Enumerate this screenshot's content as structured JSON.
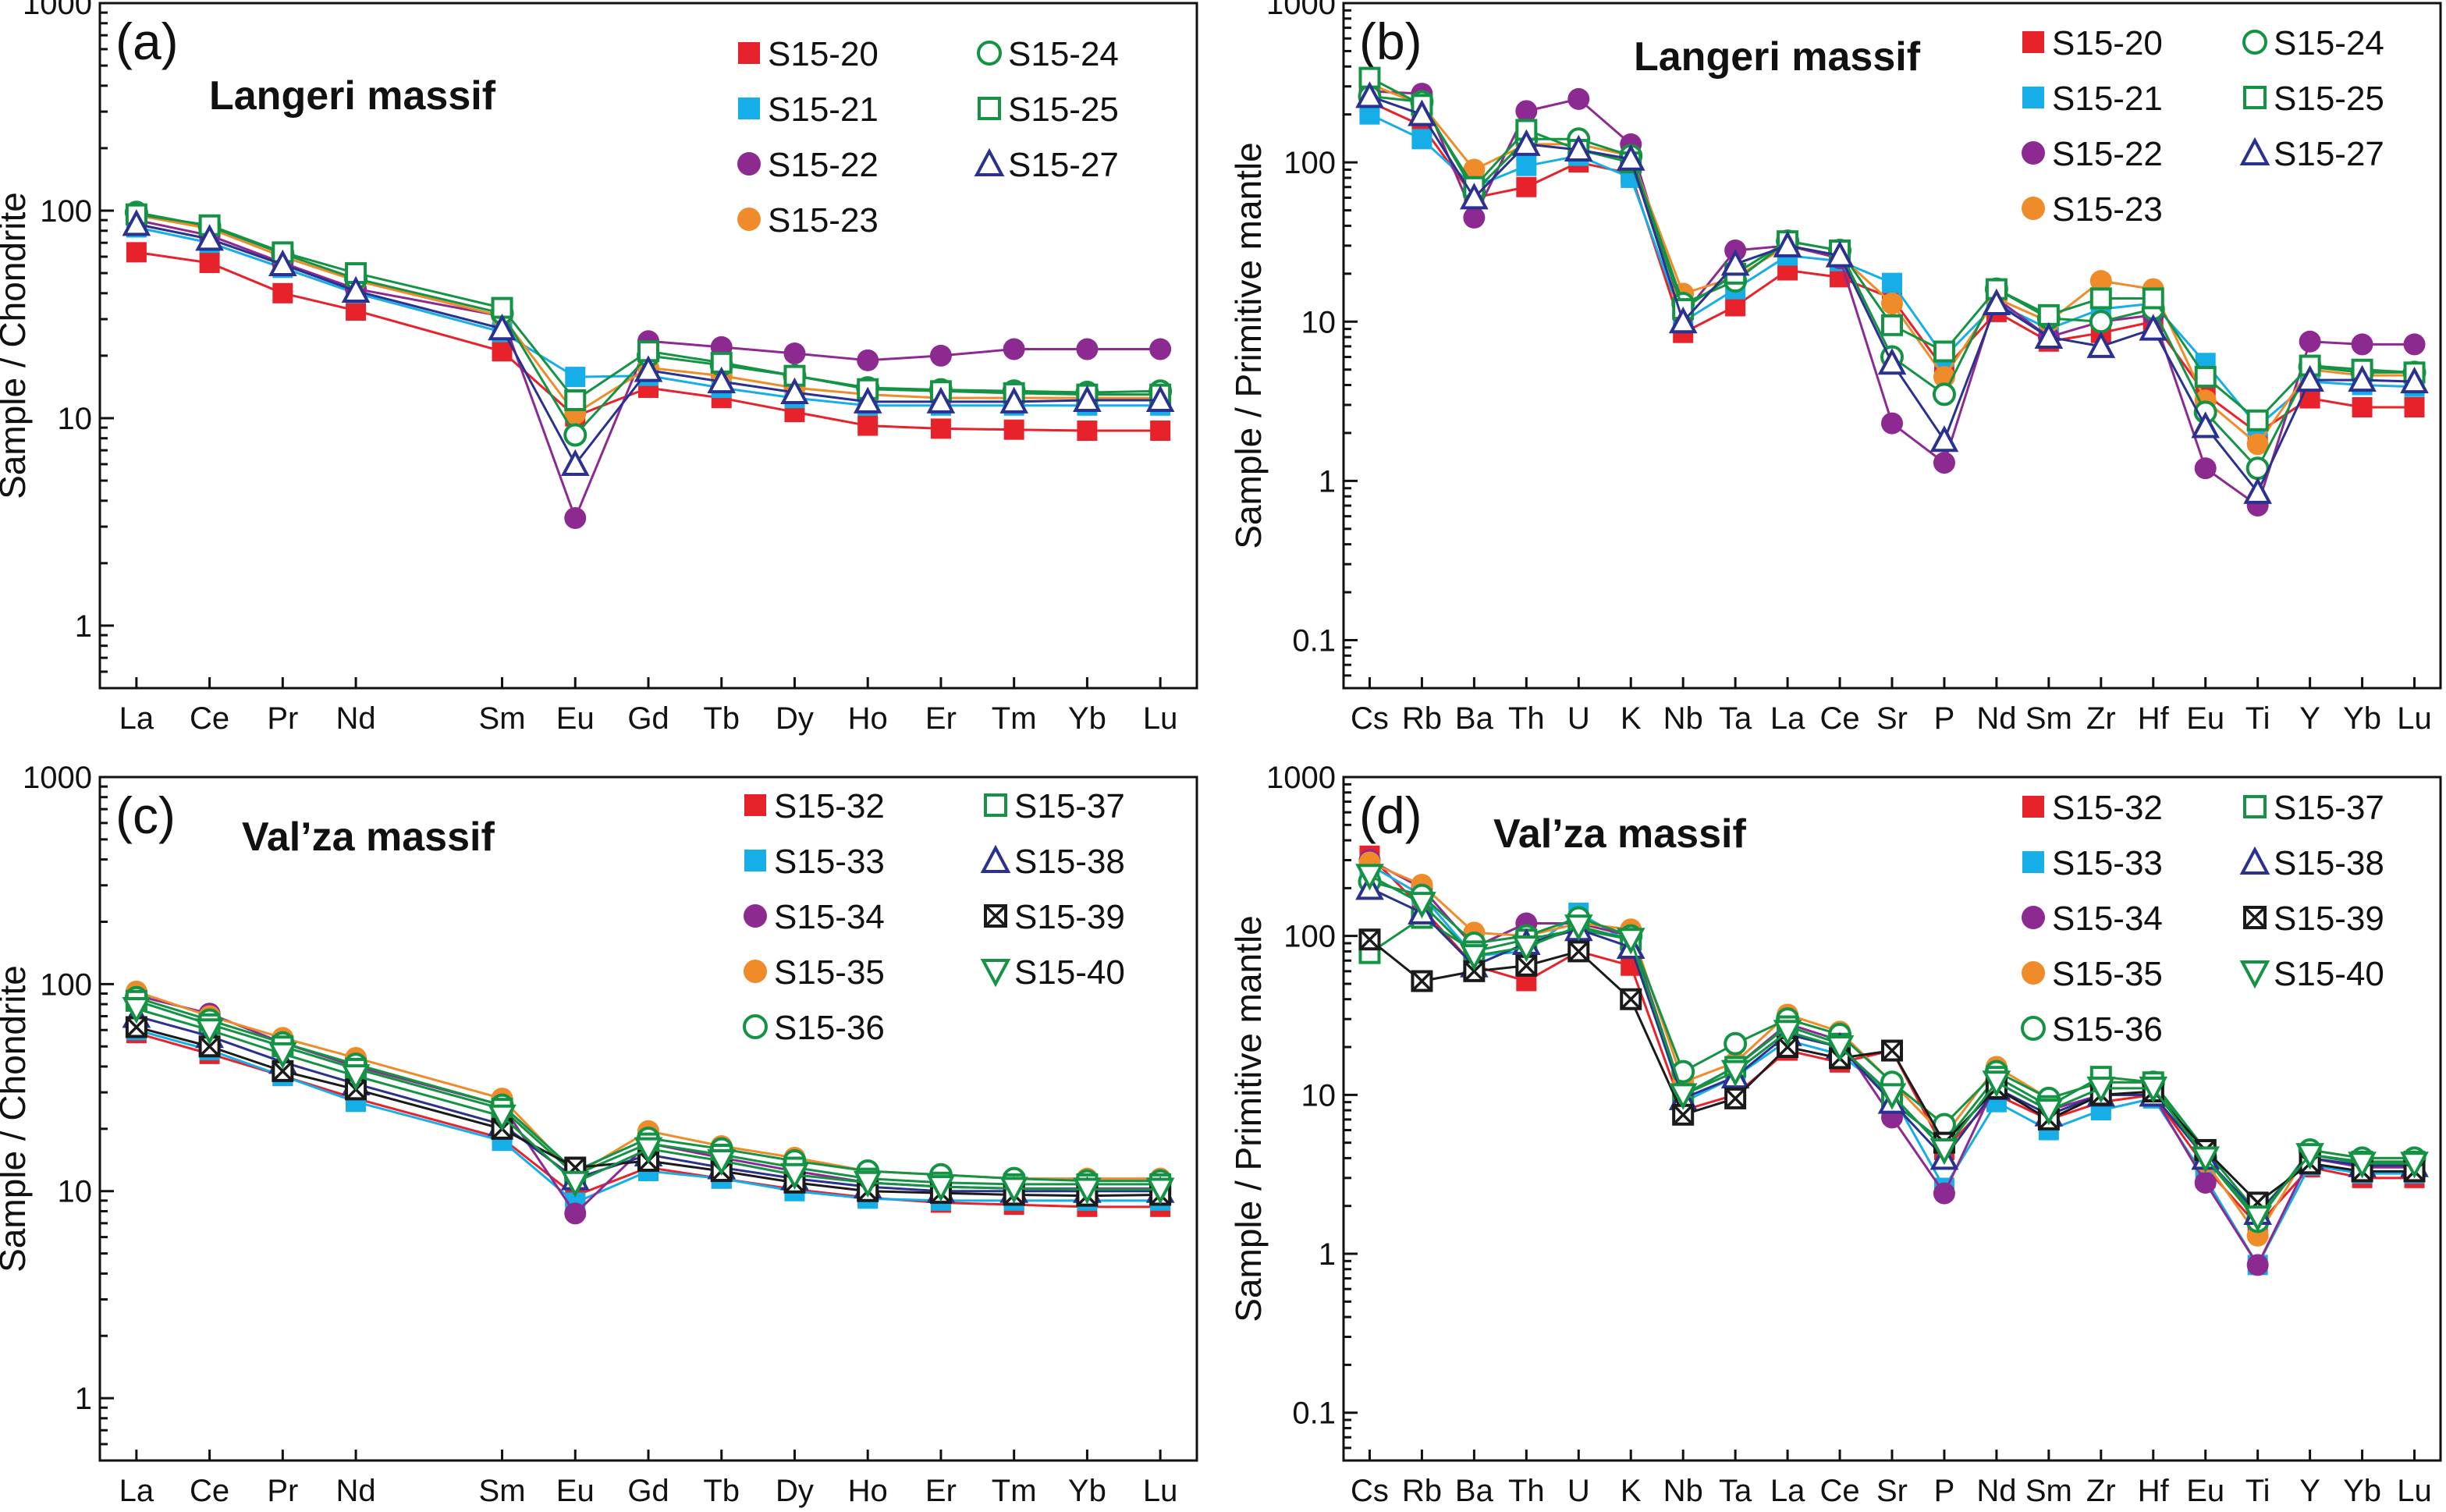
{
  "colors": {
    "red": "#e8222b",
    "blue": "#15aee8",
    "purple": "#8d2a91",
    "orange": "#f08b2a",
    "green": "#149344",
    "navy": "#2b318f",
    "black": "#1a1a1a"
  },
  "chart_data": [
    {
      "type": "line",
      "panel": "(a)",
      "massif": "Langeri massif",
      "ylabel": "Sample / Chondrite",
      "yscale": "log",
      "ylim": [
        0.5,
        1000
      ],
      "yticks": [
        "1",
        "10",
        "100",
        "1000"
      ],
      "categories": [
        "La",
        "Ce",
        "Pr",
        "Nd",
        "Sm",
        "Eu",
        "Gd",
        "Tb",
        "Dy",
        "Ho",
        "Er",
        "Tm",
        "Yb",
        "Lu"
      ],
      "series": [
        {
          "name": "S15-20",
          "color": "red",
          "marker": "square-filled",
          "values": [
            63,
            56,
            40,
            33,
            21,
            10.2,
            14,
            12.5,
            10.7,
            9.2,
            8.9,
            8.8,
            8.7,
            8.7
          ]
        },
        {
          "name": "S15-21",
          "color": "blue",
          "marker": "square-filled",
          "values": [
            83,
            70,
            53,
            40,
            26,
            15.8,
            16,
            14,
            12.5,
            11.5,
            11.5,
            11.5,
            11.5,
            11.5
          ]
        },
        {
          "name": "S15-22",
          "color": "purple",
          "marker": "circle-filled",
          "values": [
            90,
            76,
            56,
            42,
            31,
            3.3,
            23.5,
            22,
            20.5,
            19,
            20,
            21.5,
            21.5,
            21.5
          ]
        },
        {
          "name": "S15-23",
          "color": "orange",
          "marker": "circle-filled",
          "values": [
            95,
            82,
            60,
            46,
            31,
            10.5,
            17.5,
            16,
            14,
            13,
            12.5,
            12.5,
            12.5,
            12.5
          ]
        },
        {
          "name": "S15-24",
          "color": "green",
          "marker": "circle-open",
          "values": [
            98,
            84,
            62,
            47,
            32,
            8.3,
            20,
            18,
            16,
            14,
            13.7,
            13.5,
            13.3,
            13.5
          ]
        },
        {
          "name": "S15-25",
          "color": "green",
          "marker": "square-open",
          "values": [
            96,
            85,
            63,
            50,
            34,
            12.2,
            21,
            18.5,
            16,
            13.8,
            13.5,
            13.2,
            13,
            13
          ]
        },
        {
          "name": "S15-27",
          "color": "navy",
          "marker": "triangle-up-open",
          "values": [
            86,
            73,
            55,
            41,
            27,
            6,
            17,
            15,
            13.3,
            12,
            12,
            12,
            12.2,
            12.2
          ]
        }
      ]
    },
    {
      "type": "line",
      "panel": "(b)",
      "massif": "Langeri massif",
      "ylabel": "Sample / Primitive mantle",
      "yscale": "log",
      "ylim": [
        0.05,
        1000
      ],
      "yticks": [
        "0.1",
        "1",
        "10",
        "100",
        "1000"
      ],
      "categories": [
        "Cs",
        "Rb",
        "Ba",
        "Th",
        "U",
        "K",
        "Nb",
        "Ta",
        "La",
        "Ce",
        "Sr",
        "P",
        "Nd",
        "Sm",
        "Zr",
        "Hf",
        "Eu",
        "Ti",
        "Y",
        "Yb",
        "Lu"
      ],
      "series": [
        {
          "name": "S15-20",
          "color": "red",
          "marker": "square-filled",
          "values": [
            240,
            170,
            60,
            70,
            100,
            85,
            8.5,
            12.5,
            21,
            19,
            14,
            5,
            11.5,
            7.5,
            8.5,
            10,
            3.5,
            2,
            3.3,
            2.9,
            2.9
          ]
        },
        {
          "name": "S15-21",
          "color": "blue",
          "marker": "square-filled",
          "values": [
            200,
            140,
            70,
            95,
            110,
            80,
            10,
            16,
            26,
            24,
            17.5,
            6,
            13,
            9,
            12,
            13,
            5.5,
            2.2,
            4.2,
            4,
            3.9
          ]
        },
        {
          "name": "S15-22",
          "color": "purple",
          "marker": "circle-filled",
          "values": [
            280,
            270,
            45,
            210,
            250,
            130,
            11,
            28,
            30,
            25,
            2.3,
            1.3,
            14,
            8,
            10,
            11,
            1.2,
            0.7,
            7.5,
            7.2,
            7.2
          ]
        },
        {
          "name": "S15-23",
          "color": "orange",
          "marker": "circle-filled",
          "values": [
            310,
            230,
            90,
            130,
            130,
            110,
            15,
            19,
            30,
            26,
            13,
            4.5,
            14,
            10,
            18,
            16,
            3.2,
            1.7,
            5,
            4.6,
            4.6
          ]
        },
        {
          "name": "S15-24",
          "color": "green",
          "marker": "circle-open",
          "values": [
            260,
            240,
            65,
            140,
            140,
            110,
            13,
            18,
            32,
            28,
            6,
            3.5,
            16,
            10.5,
            10,
            12,
            2.7,
            1.2,
            5.2,
            4.8,
            4.8
          ]
        },
        {
          "name": "S15-25",
          "color": "green",
          "marker": "square-open",
          "values": [
            340,
            230,
            70,
            160,
            120,
            100,
            12,
            20,
            32,
            28,
            9.5,
            6.5,
            16,
            11,
            14,
            14,
            4.5,
            2.4,
            5.3,
            5,
            4.8
          ]
        },
        {
          "name": "S15-27",
          "color": "navy",
          "marker": "triangle-up-open",
          "values": [
            260,
            200,
            60,
            130,
            120,
            105,
            10,
            23,
            30,
            26,
            5.5,
            1.8,
            13,
            8,
            7,
            9,
            2.2,
            0.85,
            4.3,
            4.3,
            4.2
          ]
        }
      ]
    },
    {
      "type": "line",
      "panel": "(c)",
      "massif": "Val’za massif",
      "ylabel": "Sample / Chondrite",
      "yscale": "log",
      "ylim": [
        0.5,
        1000
      ],
      "yticks": [
        "1",
        "10",
        "100",
        "1000"
      ],
      "categories": [
        "La",
        "Ce",
        "Pr",
        "Nd",
        "Sm",
        "Eu",
        "Gd",
        "Tb",
        "Dy",
        "Ho",
        "Er",
        "Tm",
        "Yb",
        "Lu"
      ],
      "series": [
        {
          "name": "S15-32",
          "color": "red",
          "marker": "square-filled",
          "values": [
            58,
            46,
            36,
            28,
            18,
            9.5,
            13,
            11.5,
            10.2,
            9.3,
            8.8,
            8.6,
            8.4,
            8.4
          ]
        },
        {
          "name": "S15-33",
          "color": "blue",
          "marker": "square-filled",
          "values": [
            60,
            48,
            36,
            27,
            17.5,
            8.8,
            12.5,
            11.5,
            10,
            9.2,
            9,
            9,
            9,
            9
          ]
        },
        {
          "name": "S15-34",
          "color": "purple",
          "marker": "circle-filled",
          "values": [
            88,
            72,
            52,
            40,
            26,
            7.8,
            17,
            14.5,
            12.5,
            11,
            10.5,
            10.3,
            10.3,
            10.3
          ]
        },
        {
          "name": "S15-35",
          "color": "orange",
          "marker": "circle-filled",
          "values": [
            92,
            70,
            55,
            44,
            28,
            12,
            19.5,
            16.5,
            14.5,
            12.5,
            12,
            11.5,
            11.5,
            11.5
          ]
        },
        {
          "name": "S15-36",
          "color": "green",
          "marker": "circle-open",
          "values": [
            86,
            67,
            52,
            41,
            26,
            12.5,
            18,
            16,
            14,
            12.5,
            12,
            11.5,
            11.2,
            11.2
          ]
        },
        {
          "name": "S15-37",
          "color": "green",
          "marker": "square-open",
          "values": [
            83,
            64,
            50,
            39,
            25,
            12,
            17,
            15,
            13,
            11.5,
            11,
            10.8,
            10.8,
            10.8
          ]
        },
        {
          "name": "S15-38",
          "color": "navy",
          "marker": "triangle-up-open",
          "values": [
            70,
            56,
            42,
            33,
            21,
            11.5,
            15,
            13,
            11.5,
            10.5,
            10,
            10,
            10,
            10
          ]
        },
        {
          "name": "S15-39",
          "color": "black",
          "marker": "square-x",
          "values": [
            62,
            50,
            38,
            31,
            20,
            13,
            14,
            12.5,
            11,
            10,
            9.8,
            9.6,
            9.5,
            9.6
          ]
        },
        {
          "name": "S15-40",
          "color": "green",
          "marker": "triangle-down-open",
          "values": [
            76,
            60,
            46,
            36,
            23,
            11,
            16,
            14,
            12,
            11,
            10.5,
            10.3,
            10.2,
            10.2
          ]
        }
      ]
    },
    {
      "type": "line",
      "panel": "(d)",
      "massif": "Val’za massif",
      "ylabel": "Sample / Primitive mantle",
      "yscale": "log",
      "ylim": [
        0.05,
        1000
      ],
      "yticks": [
        "0.1",
        "1",
        "10",
        "100",
        "1000"
      ],
      "categories": [
        "Cs",
        "Rb",
        "Ba",
        "Th",
        "U",
        "K",
        "Nb",
        "Ta",
        "La",
        "Ce",
        "Sr",
        "P",
        "Nd",
        "Sm",
        "Zr",
        "Hf",
        "Eu",
        "Ti",
        "Y",
        "Yb",
        "Lu"
      ],
      "series": [
        {
          "name": "S15-32",
          "color": "red",
          "marker": "square-filled",
          "values": [
            320,
            150,
            65,
            52,
            80,
            65,
            8,
            10,
            19,
            16,
            19,
            4.5,
            10,
            7,
            9,
            10,
            3.5,
            1.5,
            3.5,
            3,
            3
          ]
        },
        {
          "name": "S15-33",
          "color": "blue",
          "marker": "square-filled",
          "values": [
            280,
            180,
            75,
            80,
            140,
            90,
            9,
            13,
            22,
            18,
            10,
            2.6,
            9,
            6,
            8,
            9.5,
            3,
            0.85,
            3.6,
            3.2,
            3.2
          ]
        },
        {
          "name": "S15-34",
          "color": "purple",
          "marker": "circle-filled",
          "values": [
            300,
            200,
            85,
            120,
            120,
            100,
            10,
            15,
            28,
            22,
            7.2,
            2.4,
            12,
            8,
            10,
            10,
            2.8,
            0.85,
            4,
            3.5,
            3.5
          ]
        },
        {
          "name": "S15-35",
          "color": "orange",
          "marker": "circle-filled",
          "values": [
            290,
            210,
            105,
            100,
            120,
            110,
            12,
            16,
            32,
            25,
            12,
            5.5,
            15,
            9.5,
            12,
            12,
            3.8,
            1.3,
            4.5,
            4,
            4
          ]
        },
        {
          "name": "S15-36",
          "color": "green",
          "marker": "circle-open",
          "values": [
            220,
            180,
            90,
            100,
            130,
            100,
            14,
            21,
            30,
            24,
            12,
            6.5,
            14,
            9.5,
            12,
            12,
            4,
            1.6,
            4.5,
            4,
            4
          ]
        },
        {
          "name": "S15-37",
          "color": "green",
          "marker": "square-open",
          "values": [
            78,
            130,
            80,
            95,
            110,
            95,
            10,
            15,
            27,
            21,
            9,
            5,
            13,
            8.5,
            13,
            12,
            4.5,
            1.8,
            4.2,
            3.8,
            3.8
          ]
        },
        {
          "name": "S15-38",
          "color": "navy",
          "marker": "triangle-up-open",
          "values": [
            200,
            140,
            65,
            90,
            110,
            85,
            9.5,
            13,
            24,
            20,
            9,
            4,
            11,
            7.5,
            10,
            10,
            4,
            1.8,
            4,
            3.6,
            3.6
          ]
        },
        {
          "name": "S15-39",
          "color": "black",
          "marker": "square-x",
          "values": [
            95,
            52,
            60,
            65,
            80,
            40,
            7.5,
            9.5,
            20,
            17,
            19,
            5,
            11,
            7,
            10,
            10.5,
            4.5,
            2.1,
            3.7,
            3.3,
            3.3
          ]
        },
        {
          "name": "S15-40",
          "color": "green",
          "marker": "triangle-down-open",
          "values": [
            240,
            160,
            75,
            85,
            115,
            95,
            10,
            14,
            25,
            20,
            10,
            4.5,
            12,
            8,
            11,
            11,
            4,
            1.7,
            4.2,
            3.7,
            3.7
          ]
        }
      ]
    }
  ]
}
